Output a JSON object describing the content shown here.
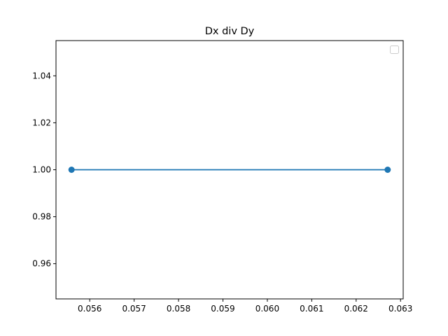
{
  "chart_data": {
    "type": "line",
    "title": "Dx div Dy",
    "xlabel": "",
    "ylabel": "",
    "xlim": [
      0.05524,
      0.06306
    ],
    "ylim": [
      0.945,
      1.055
    ],
    "x_ticks": [
      {
        "value": 0.056,
        "label": "0.056"
      },
      {
        "value": 0.057,
        "label": "0.057"
      },
      {
        "value": 0.058,
        "label": "0.058"
      },
      {
        "value": 0.059,
        "label": "0.059"
      },
      {
        "value": 0.06,
        "label": "0.060"
      },
      {
        "value": 0.061,
        "label": "0.061"
      },
      {
        "value": 0.062,
        "label": "0.062"
      },
      {
        "value": 0.063,
        "label": "0.063"
      }
    ],
    "y_ticks": [
      {
        "value": 0.96,
        "label": "0.96"
      },
      {
        "value": 0.98,
        "label": "0.98"
      },
      {
        "value": 1.0,
        "label": "1.00"
      },
      {
        "value": 1.02,
        "label": "1.02"
      },
      {
        "value": 1.04,
        "label": "1.04"
      }
    ],
    "series": [
      {
        "color": "#1f77b4",
        "marker": "circle",
        "x": [
          0.05559,
          0.06271
        ],
        "y": [
          1.0,
          1.0
        ]
      }
    ],
    "grid": false,
    "legend": {
      "placement": "top-right",
      "entries": []
    }
  }
}
